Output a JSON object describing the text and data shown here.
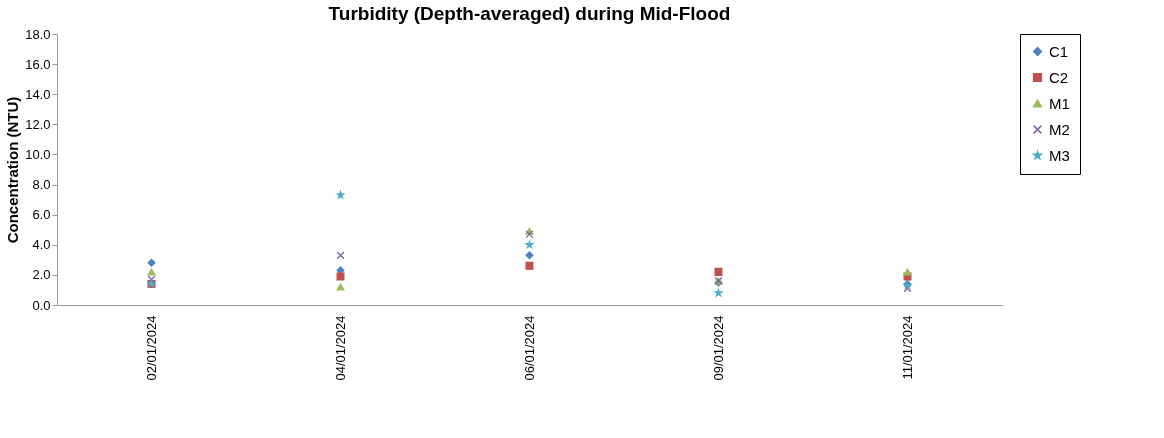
{
  "chart_data": {
    "type": "scatter",
    "title": "Turbidity (Depth-averaged) during Mid-Flood",
    "ylabel": "Concentration (NTU)",
    "categories": [
      "02/01/2024",
      "04/01/2024",
      "06/01/2024",
      "09/01/2024",
      "11/01/2024"
    ],
    "series": [
      {
        "name": "C1",
        "color": "#4f81bd",
        "marker": "diamond",
        "values": [
          2.8,
          2.3,
          3.3,
          1.5,
          1.4
        ]
      },
      {
        "name": "C2",
        "color": "#c0504d",
        "marker": "square",
        "values": [
          1.4,
          1.9,
          2.6,
          2.2,
          1.9
        ]
      },
      {
        "name": "M1",
        "color": "#9bbb59",
        "marker": "triangle",
        "values": [
          2.2,
          1.2,
          4.9,
          1.6,
          2.2
        ]
      },
      {
        "name": "M2",
        "color": "#8064a2",
        "marker": "cross",
        "values": [
          1.7,
          3.3,
          4.7,
          1.6,
          1.1
        ]
      },
      {
        "name": "M3",
        "color": "#4bacc6",
        "marker": "star",
        "values": [
          1.4,
          7.3,
          4.0,
          0.8,
          1.3
        ]
      }
    ],
    "ylim": [
      0,
      18
    ],
    "yticks": [
      {
        "value": 0,
        "label": "0.0"
      },
      {
        "value": 2,
        "label": "2.0"
      },
      {
        "value": 4,
        "label": "4.0"
      },
      {
        "value": 6,
        "label": "6.0"
      },
      {
        "value": 8,
        "label": "8.0"
      },
      {
        "value": 10,
        "label": "10.0"
      },
      {
        "value": 12,
        "label": "12.0"
      },
      {
        "value": 14,
        "label": "14.0"
      },
      {
        "value": 16,
        "label": "16.0"
      },
      {
        "value": 18,
        "label": "18.0"
      }
    ],
    "grid": false,
    "legend": "right"
  }
}
